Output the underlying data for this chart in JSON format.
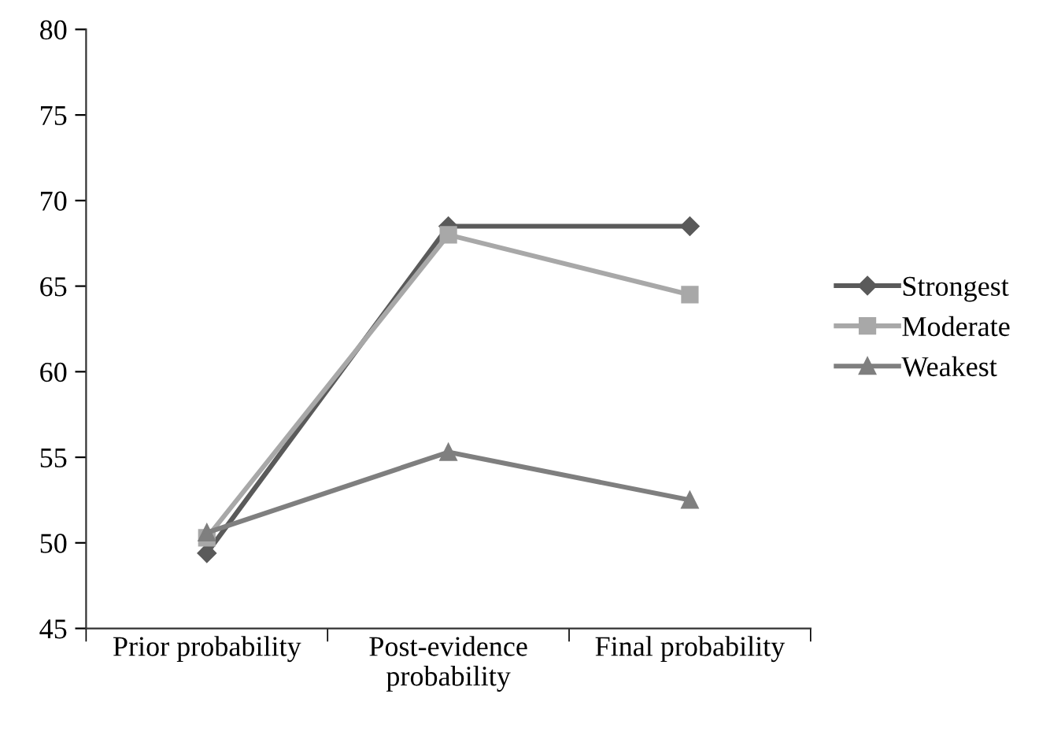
{
  "chart_data": {
    "type": "line",
    "categories": [
      "Prior probability",
      "Post-evidence\nprobability",
      "Final probability"
    ],
    "series": [
      {
        "name": "Strongest",
        "color": "#5a5a5a",
        "marker": "diamond",
        "values": [
          49.4,
          68.5,
          68.5
        ]
      },
      {
        "name": "Moderate",
        "color": "#a8a8a8",
        "marker": "square",
        "values": [
          50.3,
          68.0,
          64.5
        ]
      },
      {
        "name": "Weakest",
        "color": "#7f7f7f",
        "marker": "triangle",
        "values": [
          50.6,
          55.3,
          52.5
        ]
      }
    ],
    "ylim": [
      45,
      80
    ],
    "yticks": [
      45,
      50,
      55,
      60,
      65,
      70,
      75,
      80
    ],
    "grid": false,
    "legend": "right",
    "line_style": "solid"
  }
}
